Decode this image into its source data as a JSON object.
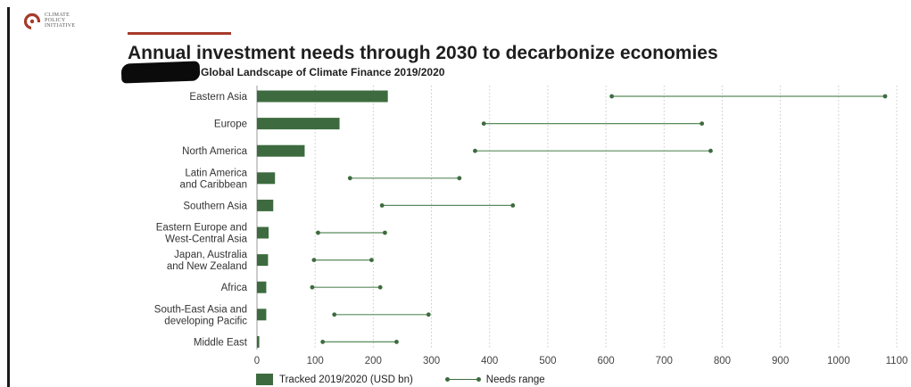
{
  "logo": {
    "text": "CLIMATE\nPOLICY\nINITIATIVE",
    "color": "#a63a2a"
  },
  "header": {
    "title": "Annual investment needs through 2030 to decarbonize economies",
    "subtitle": "Global Landscape of Climate Finance 2019/2020"
  },
  "legend": {
    "tracked_label": "Tracked 2019/2020 (USD bn)",
    "needs_label": "Needs range"
  },
  "colors": {
    "bar": "#3d6b3f",
    "range": "#5a8a5c",
    "grid": "#c8c8c8",
    "accent": "#a63a2a"
  },
  "chart_data": {
    "type": "bar",
    "orientation": "horizontal",
    "categories": [
      [
        "Eastern Asia"
      ],
      [
        "Europe"
      ],
      [
        "North America"
      ],
      [
        "Latin America",
        "and Caribbean"
      ],
      [
        "Southern Asia"
      ],
      [
        "Eastern Europe and",
        "West-Central Asia"
      ],
      [
        "Japan, Australia",
        "and New Zealand"
      ],
      [
        "Africa"
      ],
      [
        "South-East Asia and",
        "developing Pacific"
      ],
      [
        "Middle East"
      ]
    ],
    "series": [
      {
        "name": "Tracked 2019/2020 (USD bn)",
        "values": [
          225,
          142,
          82,
          31,
          28,
          20,
          19,
          16,
          16,
          4
        ]
      },
      {
        "name": "Needs range",
        "ranges": [
          [
            610,
            1080
          ],
          [
            390,
            765
          ],
          [
            375,
            780
          ],
          [
            160,
            348
          ],
          [
            215,
            440
          ],
          [
            105,
            220
          ],
          [
            98,
            197
          ],
          [
            95,
            212
          ],
          [
            133,
            295
          ],
          [
            113,
            240
          ]
        ]
      }
    ],
    "xticks": [
      0,
      100,
      200,
      300,
      400,
      500,
      600,
      700,
      800,
      900,
      1000,
      1100
    ],
    "xlim": [
      0,
      1100
    ],
    "grid": "vertical dotted"
  }
}
